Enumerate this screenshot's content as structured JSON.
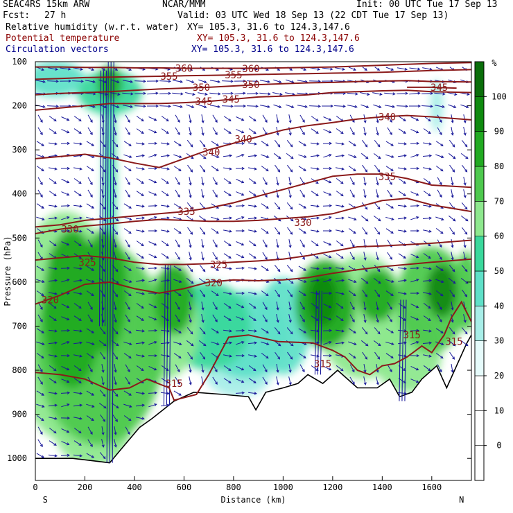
{
  "header": {
    "model": "SEAC4RS 15km ARW",
    "center": "NCAR/MMM",
    "init": "Init: 00 UTC Tue 17 Sep 13",
    "fcst_label": "Fcst:",
    "fcst_value": "27 h",
    "valid": "Valid: 03 UTC Wed 18 Sep 13 (22 CDT Tue 17 Sep 13)",
    "fields": [
      {
        "name": "Relative humidity (w.r.t. water)",
        "xy": "XY= 105.3, 31.6 to 124.3,147.6",
        "color": "#000000"
      },
      {
        "name": "Potential temperature",
        "xy": "XY= 105.3, 31.6 to 124.3,147.6",
        "color": "#8b0000"
      },
      {
        "name": "Circulation vectors",
        "xy": "XY= 105.3, 31.6 to 124.3,147.6",
        "color": "#00008b"
      }
    ]
  },
  "colors": {
    "theta": "#8b1a1a",
    "vectors": "#1a1a9a",
    "terrain": "#000000",
    "rh_ramp": [
      "#ffffff",
      "#ffffff",
      "#ffffff",
      "#ffffff",
      "#e6fbfb",
      "#a8eee8",
      "#5fe0c8",
      "#3ad89c",
      "#8ee88e",
      "#4ec94e",
      "#22aa22",
      "#0f8a0f",
      "#0a6e0a"
    ]
  },
  "chart_data": {
    "type": "contour-cross-section",
    "xlabel": "Distance (km)",
    "ylabel": "Pressure (hPa)",
    "xlim": [
      0,
      1760
    ],
    "ylim": [
      1050,
      100
    ],
    "x_ticks": [
      0,
      200,
      400,
      600,
      800,
      1000,
      1200,
      1400,
      1600
    ],
    "y_ticks": [
      100,
      200,
      300,
      400,
      500,
      600,
      700,
      800,
      900,
      1000
    ],
    "x_end_labels": {
      "left": "S",
      "right": "N"
    },
    "colorbar": {
      "unit": "%",
      "levels": [
        -10,
        0,
        10,
        20,
        30,
        40,
        50,
        60,
        70,
        80,
        90,
        100,
        110
      ],
      "labeled": [
        0,
        10,
        20,
        30,
        40,
        50,
        60,
        70,
        80,
        90,
        100
      ]
    },
    "terrain_surface_hPa": [
      [
        0,
        1000
      ],
      [
        150,
        1000
      ],
      [
        300,
        1010
      ],
      [
        330,
        990
      ],
      [
        420,
        930
      ],
      [
        470,
        910
      ],
      [
        560,
        870
      ],
      [
        640,
        850
      ],
      [
        760,
        855
      ],
      [
        860,
        860
      ],
      [
        890,
        890
      ],
      [
        930,
        850
      ],
      [
        1000,
        840
      ],
      [
        1060,
        830
      ],
      [
        1100,
        810
      ],
      [
        1160,
        830
      ],
      [
        1220,
        800
      ],
      [
        1300,
        840
      ],
      [
        1380,
        840
      ],
      [
        1430,
        820
      ],
      [
        1470,
        860
      ],
      [
        1520,
        850
      ],
      [
        1560,
        820
      ],
      [
        1620,
        790
      ],
      [
        1660,
        840
      ],
      [
        1700,
        790
      ],
      [
        1740,
        740
      ],
      [
        1760,
        720
      ]
    ],
    "theta_contours": [
      {
        "label": "315",
        "points": [
          [
            0,
            805
          ],
          [
            100,
            810
          ],
          [
            200,
            820
          ],
          [
            300,
            845
          ],
          [
            380,
            840
          ],
          [
            450,
            820
          ],
          [
            540,
            840
          ],
          [
            560,
            868
          ],
          [
            650,
            855
          ],
          [
            700,
            810
          ],
          [
            780,
            725
          ],
          [
            860,
            720
          ],
          [
            980,
            735
          ],
          [
            1120,
            738
          ],
          [
            1200,
            755
          ],
          [
            1250,
            770
          ],
          [
            1300,
            800
          ],
          [
            1350,
            810
          ],
          [
            1400,
            790
          ],
          [
            1450,
            785
          ],
          [
            1500,
            770
          ],
          [
            1560,
            745
          ],
          [
            1600,
            760
          ],
          [
            1650,
            720
          ],
          [
            1680,
            680
          ],
          [
            1720,
            645
          ],
          [
            1760,
            690
          ]
        ],
        "label_pos": [
          [
            560,
            830
          ],
          [
            1160,
            785
          ],
          [
            1520,
            720
          ],
          [
            1690,
            735
          ]
        ]
      },
      {
        "label": "320",
        "points": [
          [
            0,
            650
          ],
          [
            100,
            630
          ],
          [
            200,
            605
          ],
          [
            300,
            600
          ],
          [
            400,
            615
          ],
          [
            500,
            625
          ],
          [
            600,
            615
          ],
          [
            700,
            600
          ],
          [
            800,
            595
          ],
          [
            900,
            597
          ],
          [
            1000,
            595
          ],
          [
            1100,
            590
          ],
          [
            1200,
            580
          ],
          [
            1300,
            572
          ],
          [
            1400,
            565
          ],
          [
            1500,
            560
          ],
          [
            1600,
            555
          ],
          [
            1760,
            548
          ]
        ],
        "label_pos": [
          [
            60,
            640
          ],
          [
            720,
            602
          ]
        ]
      },
      {
        "label": "325",
        "points": [
          [
            0,
            550
          ],
          [
            100,
            545
          ],
          [
            200,
            540
          ],
          [
            300,
            545
          ],
          [
            400,
            555
          ],
          [
            500,
            560
          ],
          [
            600,
            560
          ],
          [
            700,
            558
          ],
          [
            800,
            555
          ],
          [
            900,
            552
          ],
          [
            1000,
            548
          ],
          [
            1100,
            540
          ],
          [
            1200,
            530
          ],
          [
            1300,
            520
          ],
          [
            1400,
            518
          ],
          [
            1500,
            515
          ],
          [
            1600,
            512
          ],
          [
            1760,
            505
          ]
        ],
        "label_pos": [
          [
            210,
            555
          ],
          [
            740,
            560
          ]
        ]
      },
      {
        "label": "330",
        "points": [
          [
            0,
            490
          ],
          [
            100,
            480
          ],
          [
            200,
            473
          ],
          [
            300,
            468
          ],
          [
            400,
            462
          ],
          [
            500,
            458
          ],
          [
            600,
            460
          ],
          [
            700,
            462
          ],
          [
            800,
            462
          ],
          [
            900,
            460
          ],
          [
            1000,
            456
          ],
          [
            1100,
            452
          ],
          [
            1200,
            445
          ],
          [
            1300,
            430
          ],
          [
            1400,
            415
          ],
          [
            1500,
            410
          ],
          [
            1600,
            425
          ],
          [
            1760,
            440
          ]
        ],
        "label_pos": [
          [
            140,
            480
          ],
          [
            1080,
            465
          ]
        ]
      },
      {
        "label": "335",
        "points": [
          [
            0,
            475
          ],
          [
            100,
            470
          ],
          [
            200,
            460
          ],
          [
            300,
            455
          ],
          [
            400,
            450
          ],
          [
            500,
            445
          ],
          [
            600,
            440
          ],
          [
            700,
            432
          ],
          [
            800,
            420
          ],
          [
            900,
            405
          ],
          [
            1000,
            390
          ],
          [
            1100,
            375
          ],
          [
            1200,
            360
          ],
          [
            1300,
            355
          ],
          [
            1400,
            355
          ],
          [
            1500,
            365
          ],
          [
            1600,
            380
          ],
          [
            1760,
            385
          ]
        ],
        "label_pos": [
          [
            610,
            440
          ],
          [
            1420,
            360
          ]
        ]
      },
      {
        "label": "340",
        "points": [
          [
            0,
            320
          ],
          [
            100,
            315
          ],
          [
            200,
            310
          ],
          [
            300,
            318
          ],
          [
            400,
            330
          ],
          [
            500,
            340
          ],
          [
            600,
            320
          ],
          [
            700,
            300
          ],
          [
            800,
            285
          ],
          [
            900,
            270
          ],
          [
            1000,
            255
          ],
          [
            1100,
            245
          ],
          [
            1200,
            238
          ],
          [
            1300,
            230
          ],
          [
            1400,
            225
          ],
          [
            1500,
            222
          ],
          [
            1600,
            225
          ],
          [
            1760,
            232
          ]
        ],
        "label_pos": [
          [
            710,
            305
          ],
          [
            840,
            275
          ],
          [
            1420,
            225
          ]
        ]
      },
      {
        "label": "345",
        "points": [
          [
            0,
            210
          ],
          [
            100,
            205
          ],
          [
            200,
            200
          ],
          [
            300,
            195
          ],
          [
            400,
            195
          ],
          [
            500,
            195
          ],
          [
            600,
            193
          ],
          [
            700,
            190
          ],
          [
            800,
            185
          ],
          [
            900,
            180
          ],
          [
            1000,
            178
          ],
          [
            1100,
            175
          ],
          [
            1200,
            170
          ],
          [
            1300,
            168
          ],
          [
            1400,
            166
          ],
          [
            1500,
            165
          ],
          [
            1600,
            168
          ],
          [
            1760,
            170
          ]
        ],
        "label_pos": [
          [
            680,
            190
          ],
          [
            790,
            185
          ]
        ]
      },
      {
        "label": "350",
        "points": [
          [
            0,
            175
          ],
          [
            100,
            172
          ],
          [
            200,
            170
          ],
          [
            300,
            168
          ],
          [
            400,
            165
          ],
          [
            500,
            162
          ],
          [
            600,
            160
          ],
          [
            700,
            158
          ],
          [
            800,
            155
          ],
          [
            900,
            152
          ],
          [
            1000,
            150
          ],
          [
            1100,
            148
          ],
          [
            1200,
            147
          ],
          [
            1300,
            145
          ],
          [
            1400,
            144
          ],
          [
            1500,
            143
          ],
          [
            1600,
            145
          ],
          [
            1760,
            146
          ]
        ],
        "label_pos": [
          [
            670,
            158
          ],
          [
            870,
            152
          ]
        ]
      },
      {
        "label": "355",
        "points": [
          [
            0,
            140
          ],
          [
            100,
            138
          ],
          [
            200,
            136
          ],
          [
            300,
            135
          ],
          [
            400,
            134
          ],
          [
            500,
            133
          ],
          [
            600,
            132
          ],
          [
            700,
            131
          ],
          [
            800,
            130
          ],
          [
            900,
            129
          ],
          [
            1000,
            128
          ],
          [
            1100,
            127
          ],
          [
            1200,
            126
          ],
          [
            1300,
            125
          ],
          [
            1400,
            124
          ],
          [
            1500,
            122
          ],
          [
            1600,
            120
          ],
          [
            1760,
            118
          ]
        ],
        "label_pos": [
          [
            540,
            133
          ],
          [
            800,
            130
          ]
        ]
      },
      {
        "label": "360",
        "points": [
          [
            0,
            112
          ],
          [
            100,
            112
          ],
          [
            200,
            113
          ],
          [
            300,
            113
          ],
          [
            400,
            114
          ],
          [
            500,
            114
          ],
          [
            600,
            115
          ],
          [
            700,
            115
          ],
          [
            800,
            115
          ],
          [
            900,
            115
          ],
          [
            1000,
            114
          ],
          [
            1100,
            113
          ],
          [
            1200,
            112
          ],
          [
            1300,
            110
          ],
          [
            1400,
            108
          ],
          [
            1500,
            106
          ],
          [
            1600,
            104
          ],
          [
            1760,
            102
          ]
        ],
        "label_pos": [
          [
            600,
            115
          ],
          [
            870,
            116
          ]
        ]
      },
      {
        "label": "345",
        "points": [
          [
            1500,
            158
          ],
          [
            1600,
            158
          ],
          [
            1700,
            160
          ]
        ],
        "label_pos": [
          [
            1630,
            158
          ]
        ]
      }
    ],
    "rh_blobs": [
      {
        "x": 120,
        "p": 700,
        "rx": 220,
        "ry": 260,
        "rh": 75
      },
      {
        "x": 260,
        "p": 740,
        "rx": 260,
        "ry": 230,
        "rh": 80
      },
      {
        "x": 150,
        "p": 660,
        "rx": 120,
        "ry": 180,
        "rh": 95
      },
      {
        "x": 280,
        "p": 620,
        "rx": 90,
        "ry": 140,
        "rh": 98
      },
      {
        "x": 140,
        "p": 560,
        "rx": 90,
        "ry": 60,
        "rh": 96
      },
      {
        "x": 230,
        "p": 900,
        "rx": 170,
        "ry": 120,
        "rh": 70
      },
      {
        "x": 520,
        "p": 700,
        "rx": 140,
        "ry": 120,
        "rh": 78
      },
      {
        "x": 560,
        "p": 640,
        "rx": 80,
        "ry": 80,
        "rh": 92
      },
      {
        "x": 700,
        "p": 700,
        "rx": 170,
        "ry": 100,
        "rh": 62
      },
      {
        "x": 850,
        "p": 720,
        "rx": 170,
        "ry": 100,
        "rh": 55
      },
      {
        "x": 820,
        "p": 800,
        "rx": 140,
        "ry": 60,
        "rh": 48
      },
      {
        "x": 1000,
        "p": 700,
        "rx": 110,
        "ry": 110,
        "rh": 58
      },
      {
        "x": 1170,
        "p": 650,
        "rx": 120,
        "ry": 100,
        "rh": 90
      },
      {
        "x": 1160,
        "p": 640,
        "rx": 60,
        "ry": 60,
        "rh": 102
      },
      {
        "x": 1320,
        "p": 680,
        "rx": 180,
        "ry": 140,
        "rh": 78
      },
      {
        "x": 1380,
        "p": 630,
        "rx": 80,
        "ry": 60,
        "rh": 95
      },
      {
        "x": 1600,
        "p": 640,
        "rx": 140,
        "ry": 120,
        "rh": 82
      },
      {
        "x": 1640,
        "p": 620,
        "rx": 60,
        "ry": 60,
        "rh": 100
      },
      {
        "x": 1500,
        "p": 760,
        "rx": 140,
        "ry": 90,
        "rh": 72
      },
      {
        "x": 1740,
        "p": 620,
        "rx": 50,
        "ry": 90,
        "rh": 88
      },
      {
        "x": 80,
        "p": 140,
        "rx": 120,
        "ry": 40,
        "rh": 55
      },
      {
        "x": 300,
        "p": 170,
        "rx": 130,
        "ry": 50,
        "rh": 60
      },
      {
        "x": 300,
        "p": 150,
        "rx": 50,
        "ry": 40,
        "rh": 90
      },
      {
        "x": 1620,
        "p": 200,
        "rx": 25,
        "ry": 60,
        "rh": 45
      },
      {
        "x": 300,
        "p": 400,
        "rx": 25,
        "ry": 300,
        "rh": 62
      }
    ]
  }
}
